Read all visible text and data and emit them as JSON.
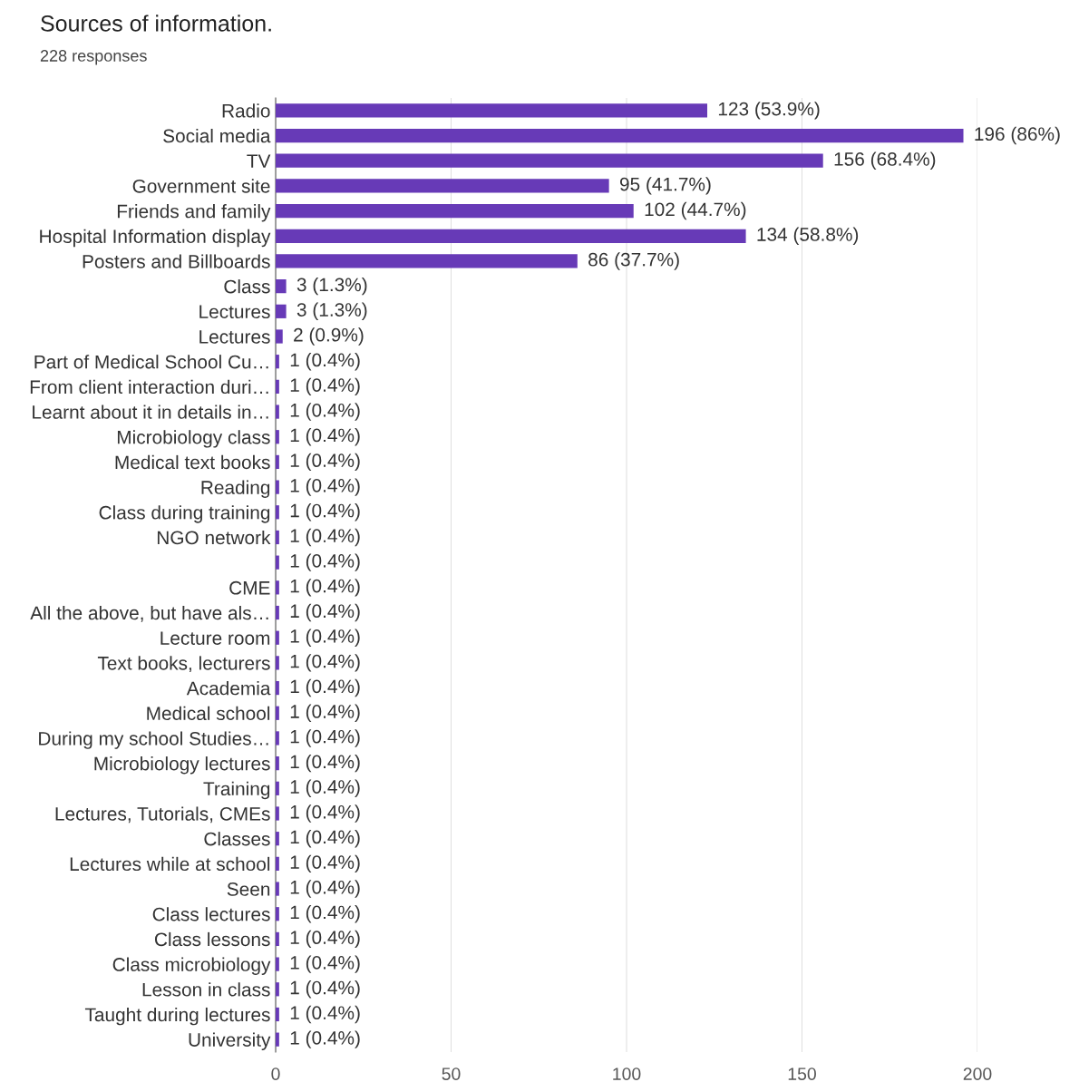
{
  "chart_data": {
    "type": "bar",
    "orientation": "horizontal",
    "title": "Sources of information.",
    "subtitle": "228 responses",
    "categories": [
      "Radio",
      "Social media",
      "TV",
      "Government site",
      "Friends and family",
      "Hospital Information display",
      "Posters and Billboards",
      "Class",
      "Lectures",
      "Lectures",
      "Part of Medical School Cu…",
      "From client interaction duri…",
      "Learnt about it in details in…",
      "Microbiology class",
      "Medical text books",
      "Reading",
      "Class during training",
      "NGO network",
      null,
      "CME",
      "All the above, but have als…",
      "Lecture room",
      "Text books, lecturers",
      "Academia",
      "Medical school",
      "During my school Studies…",
      "Microbiology lectures",
      "Training",
      "Lectures, Tutorials, CMEs",
      "Classes",
      "Lectures while at school",
      "Seen",
      "Class lectures",
      "Class lessons",
      "Class microbiology",
      "Lesson in class",
      "Taught during lectures",
      "University"
    ],
    "values": [
      123,
      196,
      156,
      95,
      102,
      134,
      86,
      3,
      3,
      2,
      1,
      1,
      1,
      1,
      1,
      1,
      1,
      1,
      1,
      1,
      1,
      1,
      1,
      1,
      1,
      1,
      1,
      1,
      1,
      1,
      1,
      1,
      1,
      1,
      1,
      1,
      1,
      1
    ],
    "value_labels": [
      "123 (53.9%)",
      "196 (86%)",
      "156 (68.4%)",
      "95 (41.7%)",
      "102 (44.7%)",
      "134 (58.8%)",
      "86 (37.7%)",
      "3 (1.3%)",
      "3 (1.3%)",
      "2 (0.9%)",
      "1 (0.4%)",
      "1 (0.4%)",
      "1 (0.4%)",
      "1 (0.4%)",
      "1 (0.4%)",
      "1 (0.4%)",
      "1 (0.4%)",
      "1 (0.4%)",
      "1 (0.4%)",
      "1 (0.4%)",
      "1 (0.4%)",
      "1 (0.4%)",
      "1 (0.4%)",
      "1 (0.4%)",
      "1 (0.4%)",
      "1 (0.4%)",
      "1 (0.4%)",
      "1 (0.4%)",
      "1 (0.4%)",
      "1 (0.4%)",
      "1 (0.4%)",
      "1 (0.4%)",
      "1 (0.4%)",
      "1 (0.4%)",
      "1 (0.4%)",
      "1 (0.4%)",
      "1 (0.4%)",
      "1 (0.4%)"
    ],
    "color": "#673ab7",
    "xlim": [
      0,
      200
    ],
    "xticks": [
      0,
      50,
      100,
      150,
      200
    ],
    "grid": "x",
    "legend": false
  }
}
